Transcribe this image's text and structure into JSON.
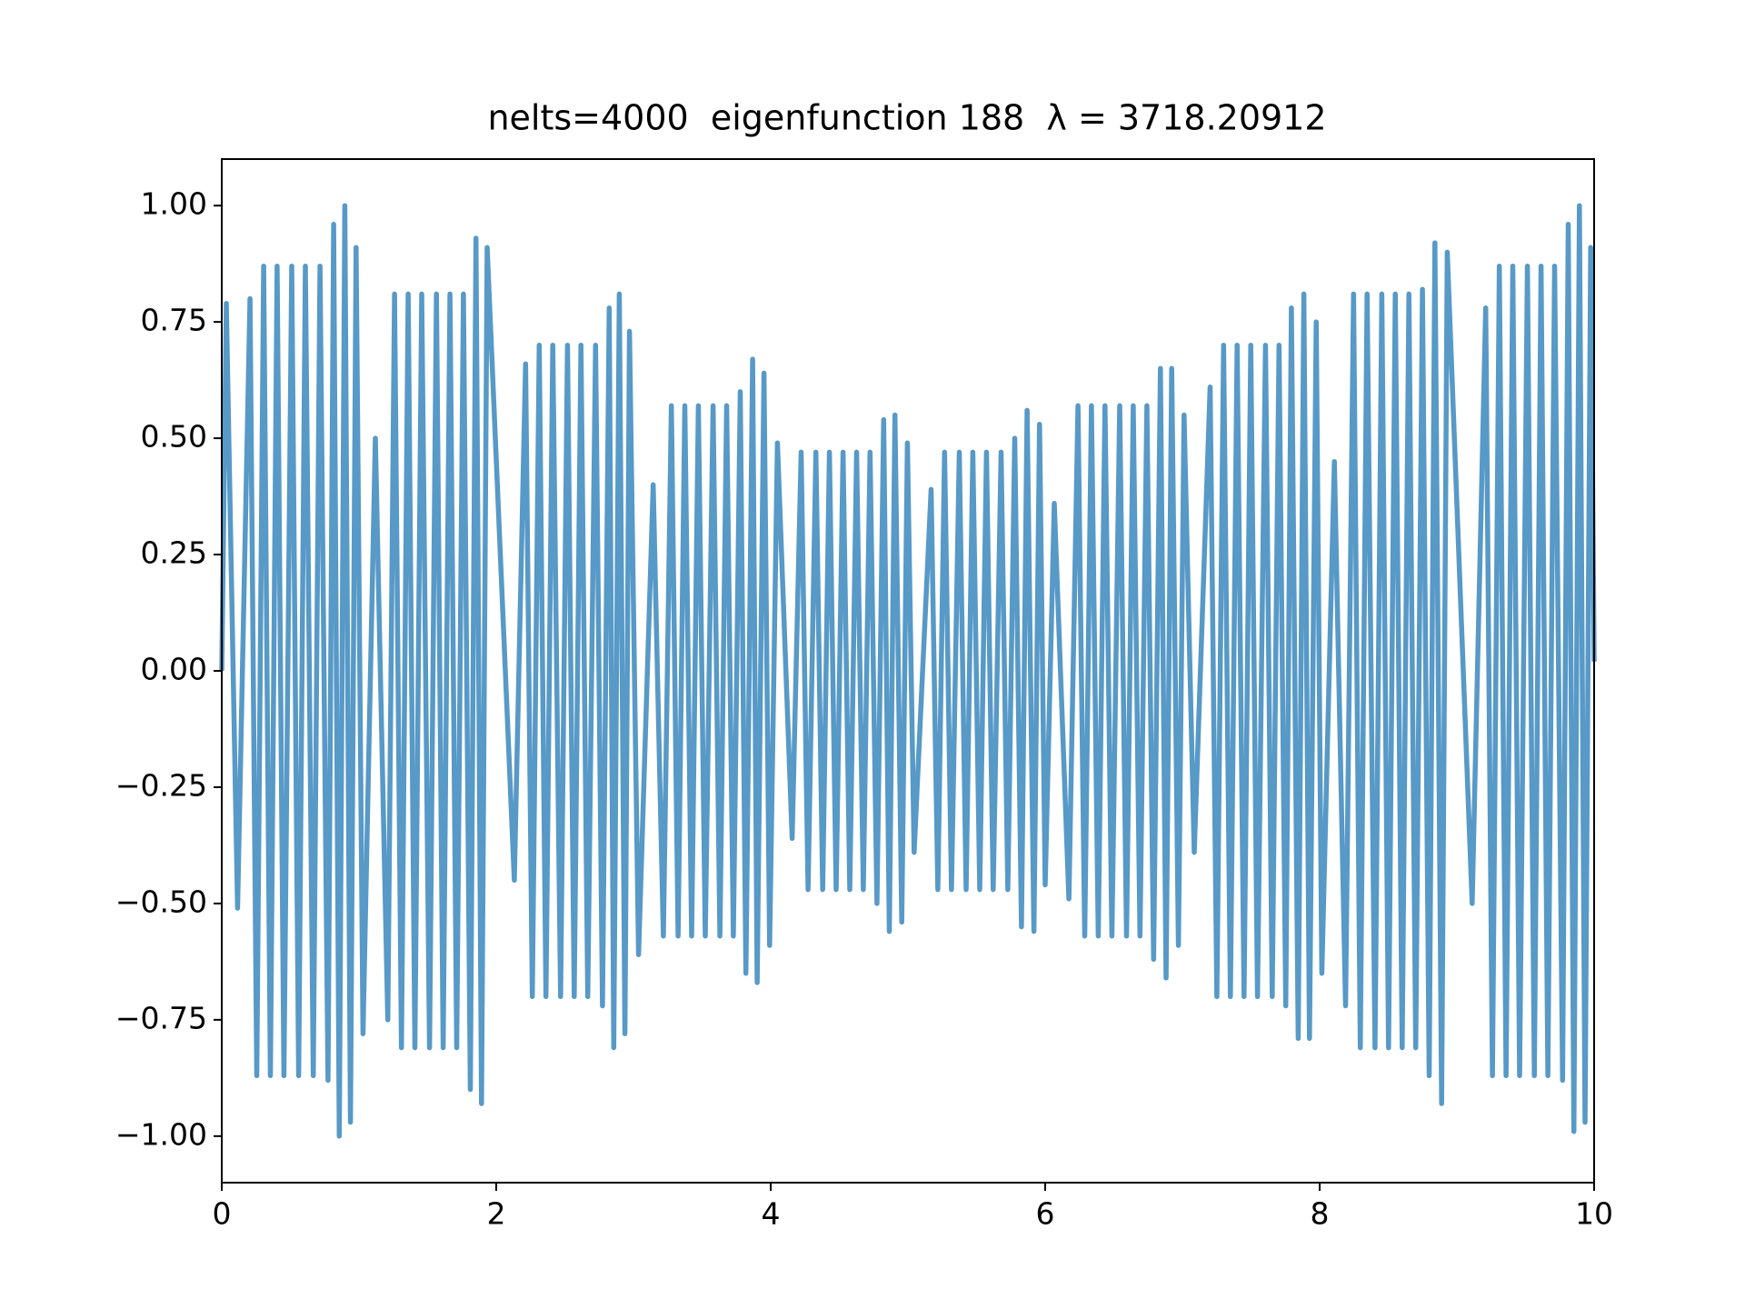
{
  "chart_data": {
    "type": "line",
    "title": "nelts=4000  eigenfunction 188  λ = 3718.20912",
    "color": "#5799c7",
    "xlim": [
      0,
      10
    ],
    "ylim": [
      -1.1,
      1.1
    ],
    "xticks": [
      0,
      2,
      4,
      6,
      8,
      10
    ],
    "yticks": [
      {
        "value": 1,
        "label": "1.00"
      },
      {
        "value": 0.75,
        "label": "0.75"
      },
      {
        "value": 0.5,
        "label": "0.50"
      },
      {
        "value": 0.25,
        "label": "0.25"
      },
      {
        "value": 0,
        "label": "0.00"
      },
      {
        "value": -0.25,
        "label": "−0.25"
      },
      {
        "value": -0.5,
        "label": "−0.50"
      },
      {
        "value": -0.75,
        "label": "−0.75"
      },
      {
        "value": -1,
        "label": "−1.00"
      }
    ],
    "x": [
      0,
      0.033,
      0.115,
      0.206,
      0.255,
      0.305,
      0.354,
      0.403,
      0.453,
      0.51,
      0.56,
      0.609,
      0.667,
      0.716,
      0.774,
      0.815,
      0.856,
      0.897,
      0.938,
      0.979,
      1.029,
      1.119,
      1.21,
      1.259,
      1.309,
      1.358,
      1.407,
      1.457,
      1.514,
      1.564,
      1.613,
      1.663,
      1.712,
      1.761,
      1.811,
      1.852,
      1.893,
      1.934,
      2.132,
      2.214,
      2.263,
      2.313,
      2.362,
      2.412,
      2.469,
      2.519,
      2.568,
      2.617,
      2.667,
      2.724,
      2.774,
      2.823,
      2.856,
      2.897,
      2.938,
      2.971,
      3.037,
      3.144,
      3.218,
      3.276,
      3.325,
      3.374,
      3.424,
      3.473,
      3.523,
      3.58,
      3.63,
      3.679,
      3.728,
      3.778,
      3.819,
      3.868,
      3.901,
      3.951,
      3.992,
      4.049,
      4.156,
      4.222,
      4.272,
      4.329,
      4.379,
      4.428,
      4.477,
      4.527,
      4.576,
      4.626,
      4.675,
      4.724,
      4.774,
      4.823,
      4.864,
      4.905,
      4.955,
      4.996,
      5.045,
      5.169,
      5.218,
      5.267,
      5.317,
      5.374,
      5.424,
      5.473,
      5.523,
      5.572,
      5.621,
      5.679,
      5.728,
      5.778,
      5.827,
      5.868,
      5.918,
      5.959,
      6.0,
      6.066,
      6.173,
      6.239,
      6.288,
      6.337,
      6.387,
      6.436,
      6.486,
      6.543,
      6.593,
      6.642,
      6.691,
      6.741,
      6.79,
      6.84,
      6.881,
      6.922,
      6.971,
      7.012,
      7.086,
      7.202,
      7.251,
      7.3,
      7.35,
      7.399,
      7.449,
      7.498,
      7.547,
      7.605,
      7.654,
      7.704,
      7.753,
      7.794,
      7.844,
      7.885,
      7.926,
      7.975,
      8.016,
      8.107,
      8.189,
      8.247,
      8.296,
      8.346,
      8.403,
      8.453,
      8.502,
      8.551,
      8.601,
      8.65,
      8.7,
      8.749,
      8.798,
      8.84,
      8.889,
      8.93,
      9.111,
      9.21,
      9.259,
      9.309,
      9.358,
      9.407,
      9.457,
      9.514,
      9.564,
      9.613,
      9.663,
      9.712,
      9.77,
      9.811,
      9.852,
      9.893,
      9.934,
      9.975,
      10
    ],
    "values": [
      0,
      0.79,
      -0.51,
      0.8,
      -0.87,
      0.87,
      -0.87,
      0.87,
      -0.87,
      0.87,
      -0.87,
      0.87,
      -0.87,
      0.87,
      -0.88,
      0.96,
      -1.0,
      1.0,
      -0.97,
      0.91,
      -0.78,
      0.5,
      -0.75,
      0.81,
      -0.81,
      0.81,
      -0.81,
      0.81,
      -0.81,
      0.81,
      -0.81,
      0.81,
      -0.81,
      0.81,
      -0.9,
      0.93,
      -0.93,
      0.91,
      -0.45,
      0.66,
      -0.7,
      0.7,
      -0.7,
      0.7,
      -0.7,
      0.7,
      -0.7,
      0.7,
      -0.7,
      0.7,
      -0.72,
      0.78,
      -0.81,
      0.81,
      -0.78,
      0.73,
      -0.61,
      0.4,
      -0.57,
      0.57,
      -0.57,
      0.57,
      -0.57,
      0.57,
      -0.57,
      0.57,
      -0.57,
      0.57,
      -0.57,
      0.6,
      -0.65,
      0.67,
      -0.67,
      0.64,
      -0.59,
      0.49,
      -0.36,
      0.47,
      -0.47,
      0.47,
      -0.47,
      0.47,
      -0.47,
      0.47,
      -0.47,
      0.47,
      -0.47,
      0.47,
      -0.5,
      0.54,
      -0.56,
      0.55,
      -0.54,
      0.49,
      -0.39,
      0.39,
      -0.47,
      0.47,
      -0.47,
      0.47,
      -0.47,
      0.47,
      -0.47,
      0.47,
      -0.47,
      0.47,
      -0.47,
      0.5,
      -0.55,
      0.56,
      -0.56,
      0.53,
      -0.46,
      0.36,
      -0.49,
      0.57,
      -0.57,
      0.57,
      -0.57,
      0.57,
      -0.57,
      0.57,
      -0.57,
      0.57,
      -0.57,
      0.57,
      -0.62,
      0.65,
      -0.66,
      0.65,
      -0.59,
      0.55,
      -0.39,
      0.61,
      -0.7,
      0.7,
      -0.7,
      0.7,
      -0.7,
      0.7,
      -0.7,
      0.7,
      -0.7,
      0.7,
      -0.72,
      0.78,
      -0.79,
      0.81,
      -0.79,
      0.75,
      -0.65,
      0.45,
      -0.72,
      0.81,
      -0.81,
      0.81,
      -0.81,
      0.81,
      -0.81,
      0.81,
      -0.81,
      0.81,
      -0.81,
      0.82,
      -0.87,
      0.92,
      -0.93,
      0.9,
      -0.5,
      0.78,
      -0.87,
      0.87,
      -0.87,
      0.87,
      -0.87,
      0.87,
      -0.87,
      0.87,
      -0.87,
      0.87,
      -0.88,
      0.96,
      -0.99,
      1.0,
      -0.97,
      0.91,
      0.02
    ]
  }
}
